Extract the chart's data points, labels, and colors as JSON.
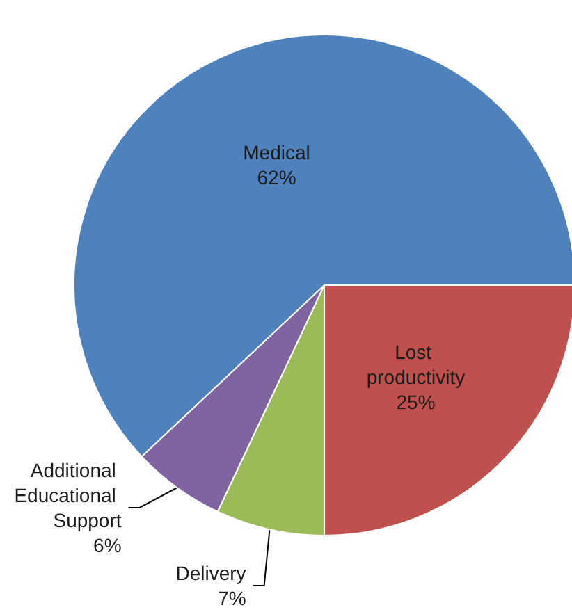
{
  "chart_data": {
    "type": "pie",
    "categories": [
      "Lost productivity",
      "Delivery",
      "Additional Educational Support",
      "Medical"
    ],
    "values": [
      25,
      7,
      6,
      62
    ],
    "colors": [
      "#c0504d",
      "#9bbb59",
      "#8064a2",
      "#4f81bd"
    ],
    "value_labels": [
      "25%",
      "7%",
      "6%",
      "62%"
    ]
  }
}
